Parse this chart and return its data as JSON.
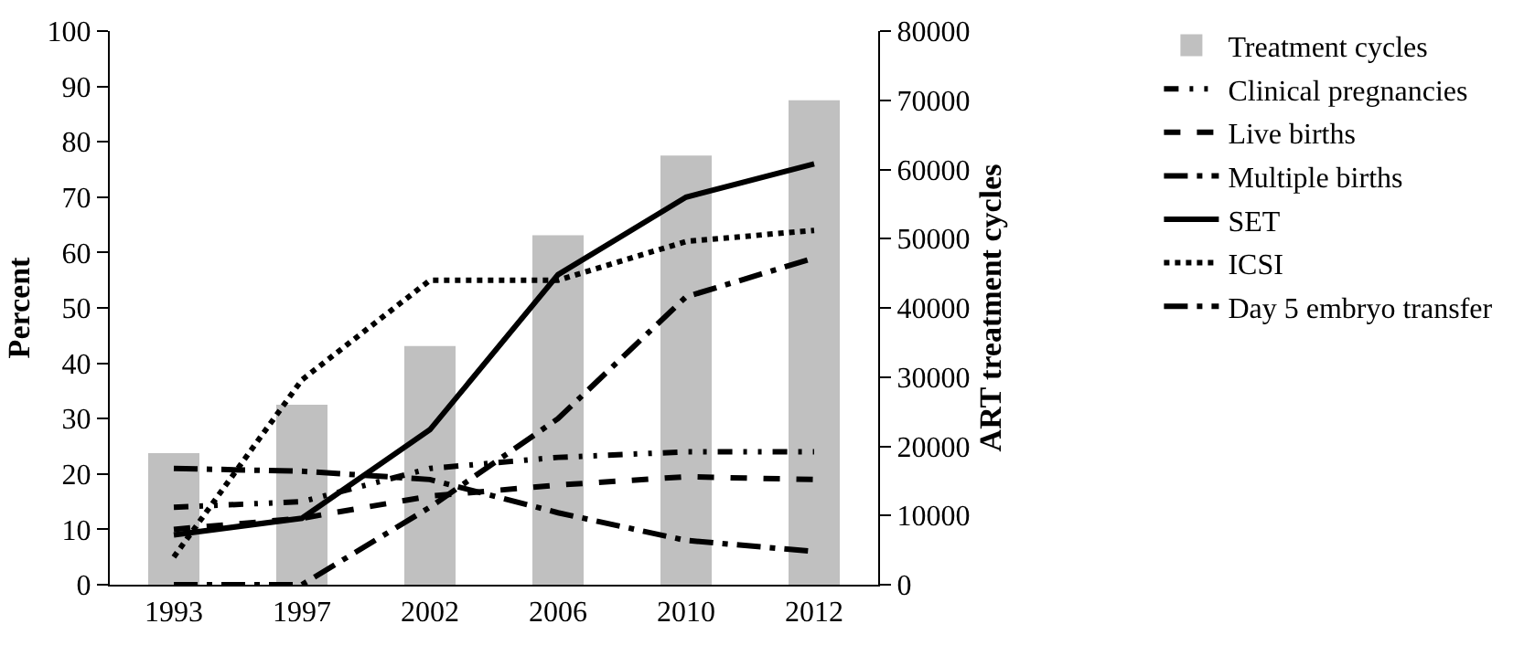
{
  "chart_data": {
    "type": "bar",
    "categories": [
      "1993",
      "1997",
      "2002",
      "2006",
      "2010",
      "2012"
    ],
    "ylabel": "Percent",
    "y2label": "ART treatment cycles",
    "ylim": [
      0,
      100
    ],
    "yticks": [
      0,
      10,
      20,
      30,
      40,
      50,
      60,
      70,
      80,
      90,
      100
    ],
    "y2lim": [
      0,
      80000
    ],
    "y2ticks": [
      0,
      10000,
      20000,
      30000,
      40000,
      50000,
      60000,
      70000,
      80000
    ],
    "grid": false,
    "legend": "right",
    "marker": "none",
    "series": [
      {
        "name": "Treatment cycles",
        "axis": "y2",
        "color": "#c0c0c0",
        "values": [
          19000,
          26000,
          34500,
          50500,
          62000,
          70000
        ]
      },
      {
        "name": "Clinical pregnancies",
        "type": "line",
        "color": "#000000",
        "line_style": "dashdot",
        "values": [
          14,
          15,
          21,
          23,
          24,
          24
        ]
      },
      {
        "name": "Live births",
        "type": "line",
        "color": "#000000",
        "line_style": "dashed",
        "values": [
          10,
          12,
          16,
          18,
          19.5,
          19
        ]
      },
      {
        "name": "Multiple births",
        "type": "line",
        "color": "#000000",
        "line_style": "longdashdot",
        "values": [
          21,
          20.5,
          19,
          13,
          8,
          6
        ]
      },
      {
        "name": "SET",
        "type": "line",
        "color": "#000000",
        "line_style": "solid",
        "values": [
          9,
          12,
          28,
          56,
          70,
          76
        ]
      },
      {
        "name": "ICSI",
        "type": "line",
        "color": "#000000",
        "line_style": "dotted",
        "values": [
          5,
          37,
          55,
          55,
          62,
          64
        ]
      },
      {
        "name": "Day 5 embryo transfer",
        "type": "line",
        "color": "#000000",
        "line_style": "longdashdot",
        "values": [
          0,
          0,
          14,
          30,
          52,
          59
        ]
      }
    ]
  }
}
